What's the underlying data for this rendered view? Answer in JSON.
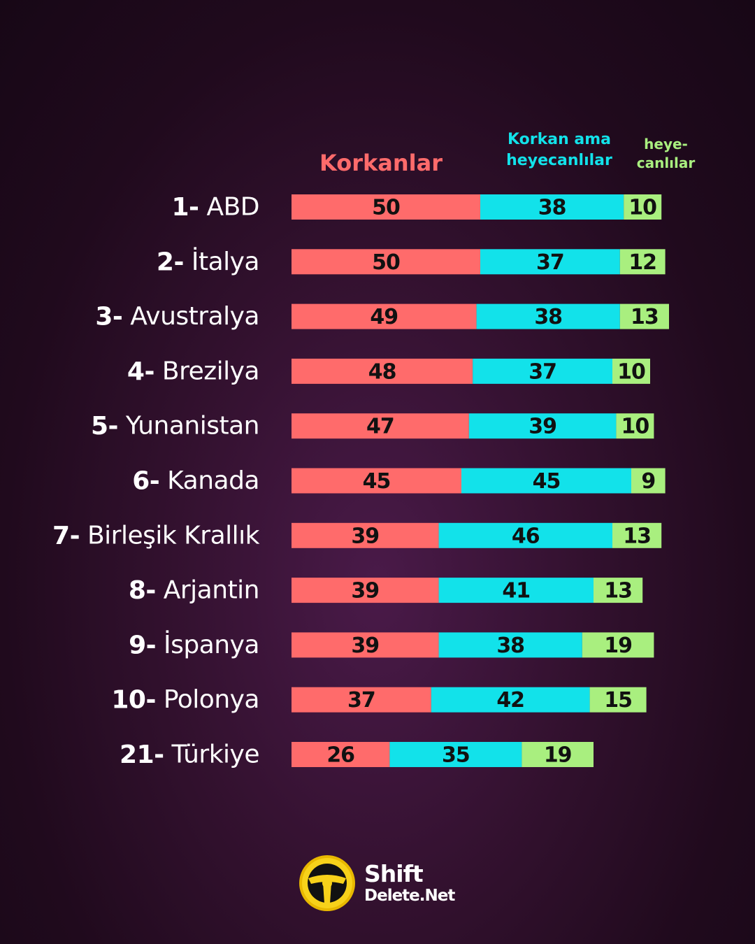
{
  "colors": {
    "fear": "#ff6b6b",
    "mixed": "#12e2ea",
    "excited": "#a9ef7f",
    "label_text": "#ffffff",
    "value_text": "#111111"
  },
  "chart_data": {
    "type": "bar",
    "orientation": "horizontal-stacked",
    "categories": [
      "1- ABD",
      "2- İtalya",
      "3- Avustralya",
      "4- Brezilya",
      "5- Yunanistan",
      "6- Kanada",
      "7- Birleşik Krallık",
      "8- Arjantin",
      "9- İspanya",
      "10- Polonya",
      "21- Türkiye"
    ],
    "series": [
      {
        "name": "Korkanlar",
        "color": "#ff6b6b",
        "values": [
          50,
          50,
          49,
          48,
          47,
          45,
          39,
          39,
          39,
          37,
          26
        ]
      },
      {
        "name": "Korkan ama\nheyecanlılar",
        "color": "#12e2ea",
        "values": [
          38,
          37,
          38,
          37,
          39,
          45,
          46,
          41,
          38,
          42,
          35
        ]
      },
      {
        "name": "heye-\ncanlılar",
        "color": "#a9ef7f",
        "values": [
          10,
          12,
          13,
          10,
          10,
          9,
          13,
          13,
          19,
          15,
          19
        ]
      }
    ],
    "legend": "top"
  },
  "logo": {
    "line1": "Shift",
    "line2": "Delete.Net"
  }
}
